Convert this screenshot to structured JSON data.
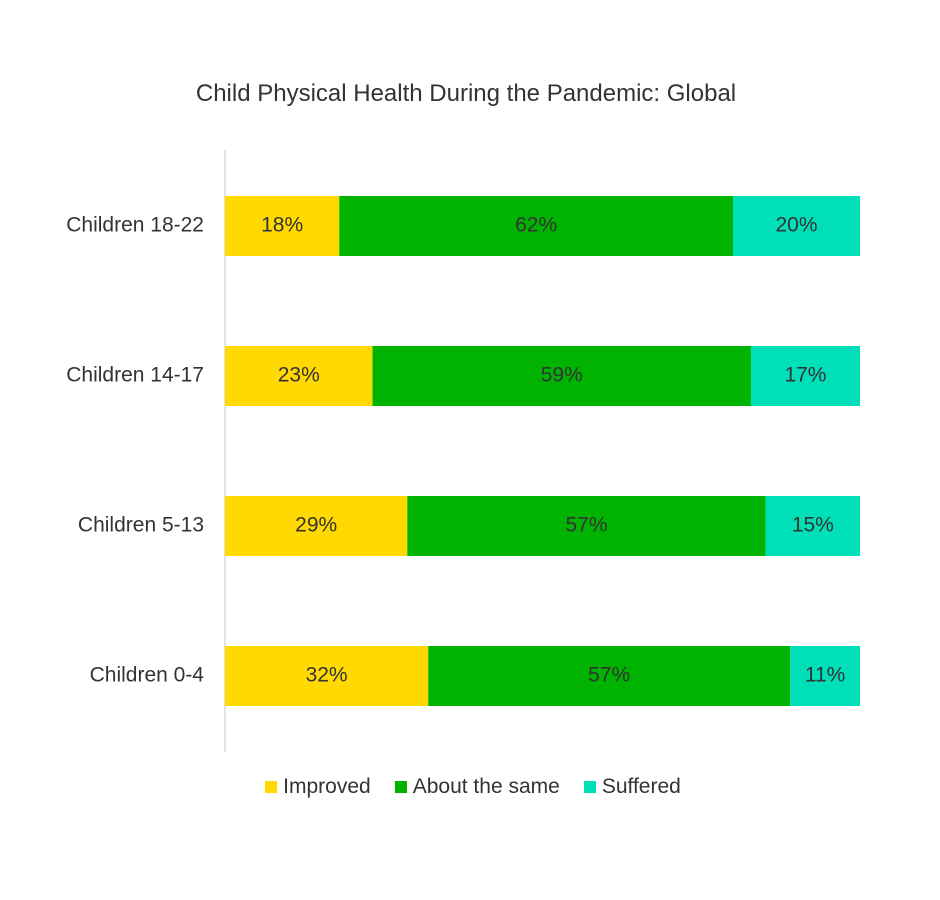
{
  "chart_data": {
    "type": "bar",
    "orientation": "horizontal",
    "stacked": true,
    "title": "Child Physical Health During the Pandemic: Global",
    "categories": [
      "Children 18-22",
      "Children 14-17",
      "Children 5-13",
      "Children 0-4"
    ],
    "series": [
      {
        "name": "Improved",
        "color": "#ffd900",
        "values": [
          18,
          23,
          29,
          32
        ],
        "labels": [
          "18%",
          "23%",
          "29%",
          "32%"
        ]
      },
      {
        "name": "About the same",
        "color": "#00b300",
        "values": [
          62,
          59,
          57,
          57
        ],
        "labels": [
          "62%",
          "59%",
          "57%",
          "57%"
        ]
      },
      {
        "name": "Suffered",
        "color": "#00e0b8",
        "values": [
          20,
          17,
          15,
          11
        ],
        "labels": [
          "20%",
          "17%",
          "15%",
          "11%"
        ]
      }
    ],
    "xlim": [
      0,
      100
    ],
    "grid": false,
    "legend_position": "bottom"
  }
}
